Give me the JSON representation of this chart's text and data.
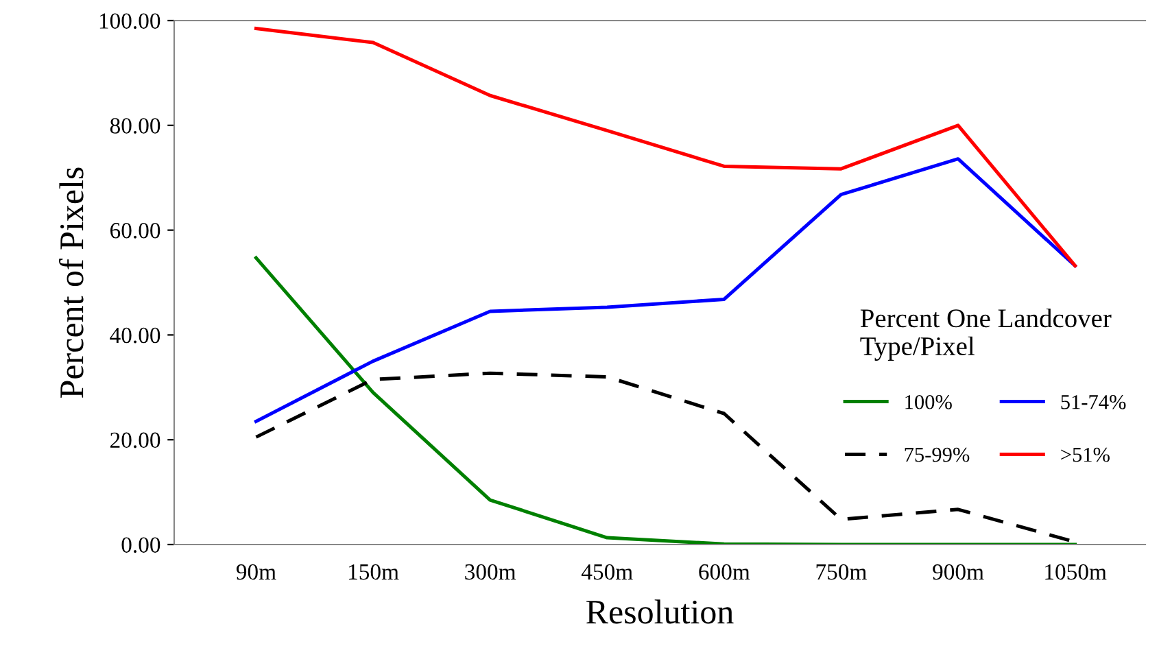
{
  "chart_data": {
    "type": "line",
    "xlabel": "Resolution",
    "ylabel": "Percent of Pixels",
    "legend_title": "Percent One Landcover\nType/Pixel",
    "legend": "right",
    "categories": [
      "90m",
      "150m",
      "300m",
      "450m",
      "600m",
      "750m",
      "900m",
      "1050m"
    ],
    "ylim": [
      0,
      100
    ],
    "yticks": [
      {
        "value": 0,
        "label": "0.00"
      },
      {
        "value": 20,
        "label": "20.00"
      },
      {
        "value": 40,
        "label": "40.00"
      },
      {
        "value": 60,
        "label": "60.00"
      },
      {
        "value": 80,
        "label": "80.00"
      },
      {
        "value": 100,
        "label": "100.00"
      }
    ],
    "grid": false,
    "marker": "none",
    "series": [
      {
        "name": "100%",
        "color": "#008000",
        "values": [
          54.7,
          29,
          8.5,
          1.3,
          0.1,
          0,
          0,
          0
        ]
      },
      {
        "name": "75-99%",
        "color": "#000000",
        "line_style": "dashed",
        "values": [
          20.5,
          31.5,
          32.7,
          32,
          25,
          4.8,
          6.7,
          0.5
        ]
      },
      {
        "name": "51-74%",
        "color": "#0000ff",
        "values": [
          23.5,
          35,
          44.5,
          45.3,
          46.8,
          66.8,
          73.6,
          53.2
        ]
      },
      {
        "name": ">51%",
        "color": "#ff0000",
        "values": [
          98.5,
          95.8,
          85.7,
          79,
          72.2,
          71.7,
          80,
          53.2
        ]
      }
    ]
  }
}
